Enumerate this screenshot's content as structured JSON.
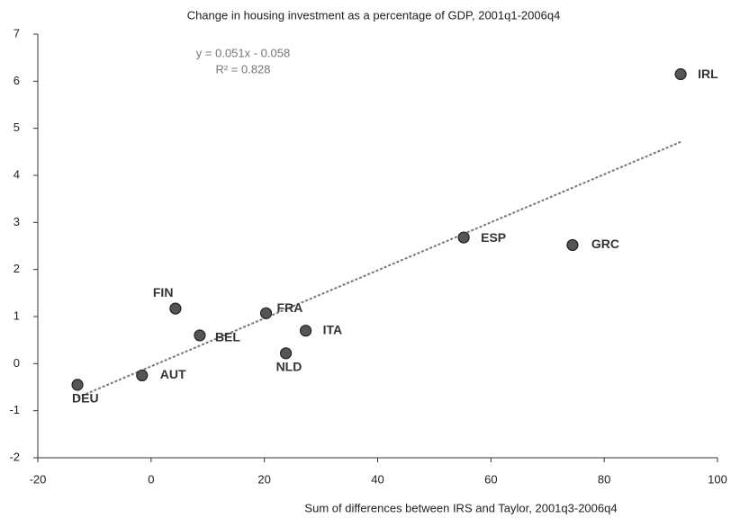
{
  "chart_data": {
    "type": "scatter",
    "title": "Change in housing investment as a percentage of GDP,  2001q1-2006q4",
    "x_label": "Sum of differences between IRS and Taylor, 2001q3-2006q4",
    "labels": [
      "DEU",
      "AUT",
      "FIN",
      "BEL",
      "NLD",
      "FRA",
      "ITA",
      "ESP",
      "GRC",
      "IRL"
    ],
    "x": [
      -13,
      -1.6,
      4.3,
      8.6,
      23.8,
      20.3,
      27.3,
      55.2,
      74.4,
      93.5
    ],
    "values": [
      -0.45,
      -0.25,
      1.17,
      0.6,
      0.22,
      1.07,
      0.7,
      2.68,
      2.52,
      6.15
    ],
    "color": "#555555",
    "trendline": {
      "equation": "y = 0.051x - 0.058",
      "r2": "R² = 0.828",
      "slope": 0.051,
      "intercept": -0.058,
      "color": "#777777"
    },
    "xlim": [
      -20,
      100
    ],
    "xticks": [
      -20,
      0,
      20,
      40,
      60,
      80,
      100
    ],
    "ylim": [
      -2,
      7
    ],
    "yticks": [
      -2,
      -1,
      0,
      1,
      2,
      3,
      4,
      5,
      6,
      7
    ],
    "grid": false
  }
}
